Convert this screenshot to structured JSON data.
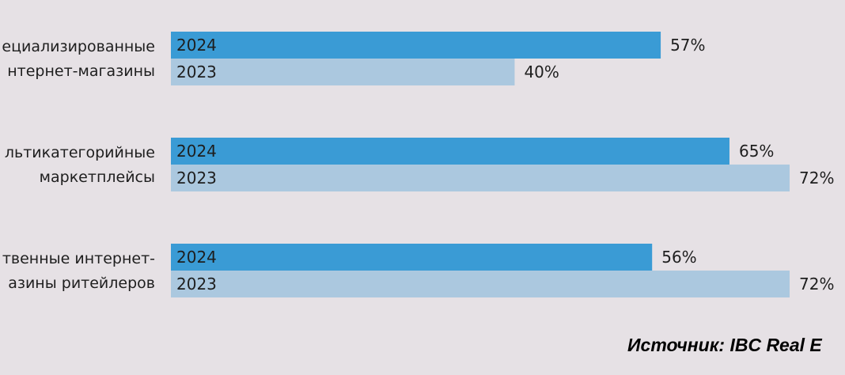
{
  "chart_data": {
    "type": "bar",
    "orientation": "horizontal",
    "categories": [
      [
        "ециализированные",
        "нтернет-магазины"
      ],
      [
        "льтикатегорийные",
        "маркетплейсы"
      ],
      [
        "твенные интернет-",
        "азины ритейлеров"
      ]
    ],
    "series": [
      {
        "name": "2024",
        "values": [
          57,
          65,
          56
        ],
        "color": "#3a9bd5"
      },
      {
        "name": "2023",
        "values": [
          40,
          72,
          72
        ],
        "color": "#abc8df"
      }
    ],
    "value_suffix": "%",
    "xlim": [
      0,
      72
    ],
    "grid": false,
    "legend": "none"
  },
  "source": "Источник: IBC Real E"
}
